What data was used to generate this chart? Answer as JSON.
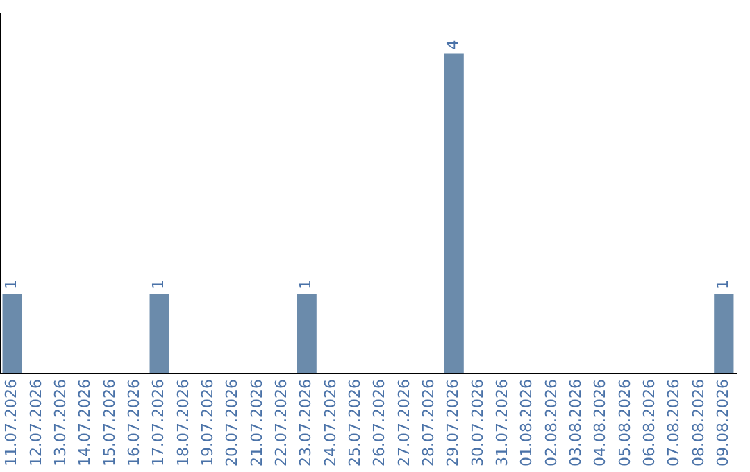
{
  "chart_data": {
    "type": "bar",
    "categories": [
      "11.07.2026",
      "12.07.2026",
      "13.07.2026",
      "14.07.2026",
      "15.07.2026",
      "16.07.2026",
      "17.07.2026",
      "18.07.2026",
      "19.07.2026",
      "20.07.2026",
      "21.07.2026",
      "22.07.2026",
      "23.07.2026",
      "24.07.2026",
      "25.07.2026",
      "26.07.2026",
      "27.07.2026",
      "28.07.2026",
      "29.07.2026",
      "30.07.2026",
      "31.07.2026",
      "01.08.2026",
      "02.08.2026",
      "03.08.2026",
      "04.08.2026",
      "05.08.2026",
      "06.08.2026",
      "07.08.2026",
      "08.08.2026",
      "09.08.2026"
    ],
    "values": [
      1,
      0,
      0,
      0,
      0,
      0,
      1,
      0,
      0,
      0,
      0,
      0,
      1,
      0,
      0,
      0,
      0,
      0,
      4,
      0,
      0,
      0,
      0,
      0,
      0,
      0,
      0,
      0,
      0,
      1
    ],
    "value_labels": [
      "1",
      null,
      null,
      null,
      null,
      null,
      "1",
      null,
      null,
      null,
      null,
      null,
      "1",
      null,
      null,
      null,
      null,
      null,
      "4",
      null,
      null,
      null,
      null,
      null,
      null,
      null,
      null,
      null,
      null,
      "1"
    ],
    "color": "#6b8bab",
    "tick_labels": "x",
    "grid": false,
    "legend": false
  }
}
